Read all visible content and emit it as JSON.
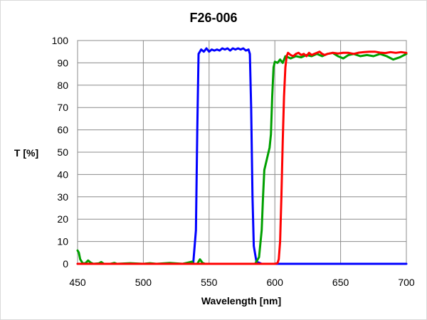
{
  "chart_data": {
    "type": "line",
    "title": "F26-006",
    "xlabel": "Wavelength [nm]",
    "ylabel": "T [%]",
    "xlim": [
      450,
      700
    ],
    "ylim": [
      0,
      100
    ],
    "xticks": [
      450,
      500,
      550,
      600,
      650,
      700
    ],
    "yticks": [
      0,
      10,
      20,
      30,
      40,
      50,
      60,
      70,
      80,
      90,
      100
    ],
    "grid": true,
    "legend": "none",
    "series": [
      {
        "color": "#0000ff",
        "points": [
          [
            450,
            0
          ],
          [
            530,
            0
          ],
          [
            538,
            0.5
          ],
          [
            540,
            15
          ],
          [
            541,
            60
          ],
          [
            542,
            94
          ],
          [
            544,
            96
          ],
          [
            546,
            95
          ],
          [
            548,
            96.5
          ],
          [
            550,
            95
          ],
          [
            552,
            96
          ],
          [
            554,
            95.5
          ],
          [
            556,
            96
          ],
          [
            558,
            95.5
          ],
          [
            560,
            96.5
          ],
          [
            562,
            96
          ],
          [
            564,
            96.5
          ],
          [
            566,
            95.5
          ],
          [
            568,
            96.5
          ],
          [
            570,
            96
          ],
          [
            572,
            96.5
          ],
          [
            574,
            96
          ],
          [
            576,
            96.5
          ],
          [
            578,
            95.5
          ],
          [
            580,
            96
          ],
          [
            581,
            94
          ],
          [
            582,
            70
          ],
          [
            583,
            30
          ],
          [
            584,
            8
          ],
          [
            586,
            1
          ],
          [
            590,
            0
          ],
          [
            700,
            0
          ]
        ]
      },
      {
        "color": "#00a000",
        "points": [
          [
            450,
            6
          ],
          [
            451,
            5
          ],
          [
            452,
            2
          ],
          [
            454,
            0.2
          ],
          [
            456,
            0.3
          ],
          [
            458,
            1.5
          ],
          [
            460,
            0.5
          ],
          [
            462,
            0
          ],
          [
            466,
            0.2
          ],
          [
            468,
            0.8
          ],
          [
            470,
            0
          ],
          [
            475,
            0
          ],
          [
            478,
            0.4
          ],
          [
            480,
            0
          ],
          [
            490,
            0.3
          ],
          [
            500,
            0
          ],
          [
            505,
            0.3
          ],
          [
            510,
            0
          ],
          [
            520,
            0.4
          ],
          [
            530,
            0
          ],
          [
            535,
            0.7
          ],
          [
            537,
            1
          ],
          [
            538,
            0
          ],
          [
            541,
            0
          ],
          [
            543,
            2
          ],
          [
            545,
            0.4
          ],
          [
            547,
            0
          ],
          [
            580,
            0
          ],
          [
            585,
            0
          ],
          [
            588,
            3
          ],
          [
            590,
            15
          ],
          [
            591,
            30
          ],
          [
            592,
            42
          ],
          [
            594,
            47
          ],
          [
            596,
            52
          ],
          [
            597,
            58
          ],
          [
            598,
            75
          ],
          [
            599,
            88
          ],
          [
            600,
            90.5
          ],
          [
            602,
            90
          ],
          [
            604,
            91.5
          ],
          [
            606,
            90
          ],
          [
            608,
            93
          ],
          [
            612,
            92
          ],
          [
            616,
            93
          ],
          [
            620,
            92.5
          ],
          [
            624,
            93.5
          ],
          [
            628,
            93
          ],
          [
            632,
            94
          ],
          [
            636,
            93
          ],
          [
            640,
            94
          ],
          [
            644,
            94.5
          ],
          [
            648,
            93
          ],
          [
            652,
            92
          ],
          [
            656,
            93.5
          ],
          [
            660,
            94
          ],
          [
            665,
            93
          ],
          [
            670,
            93.5
          ],
          [
            675,
            93
          ],
          [
            680,
            94
          ],
          [
            685,
            93
          ],
          [
            690,
            91.5
          ],
          [
            695,
            92.5
          ],
          [
            700,
            94
          ]
        ]
      },
      {
        "color": "#ff0000",
        "points": [
          [
            450,
            0
          ],
          [
            600,
            0
          ],
          [
            602,
            0.3
          ],
          [
            603,
            2
          ],
          [
            604,
            10
          ],
          [
            605,
            30
          ],
          [
            606,
            55
          ],
          [
            607,
            75
          ],
          [
            608,
            88
          ],
          [
            609,
            93
          ],
          [
            610,
            94.5
          ],
          [
            612,
            93.5
          ],
          [
            614,
            93
          ],
          [
            616,
            94
          ],
          [
            618,
            94.5
          ],
          [
            620,
            93.5
          ],
          [
            622,
            94
          ],
          [
            624,
            93
          ],
          [
            626,
            94.5
          ],
          [
            628,
            93.5
          ],
          [
            630,
            94
          ],
          [
            632,
            94.5
          ],
          [
            634,
            95
          ],
          [
            636,
            94
          ],
          [
            638,
            93.5
          ],
          [
            640,
            94
          ],
          [
            644,
            94.5
          ],
          [
            648,
            94.2
          ],
          [
            652,
            94.5
          ],
          [
            656,
            94.5
          ],
          [
            660,
            94
          ],
          [
            664,
            94.6
          ],
          [
            668,
            94.8
          ],
          [
            672,
            95
          ],
          [
            676,
            95
          ],
          [
            680,
            94.6
          ],
          [
            684,
            94.4
          ],
          [
            688,
            94.8
          ],
          [
            692,
            94.5
          ],
          [
            696,
            94.8
          ],
          [
            700,
            94.5
          ]
        ]
      }
    ]
  }
}
